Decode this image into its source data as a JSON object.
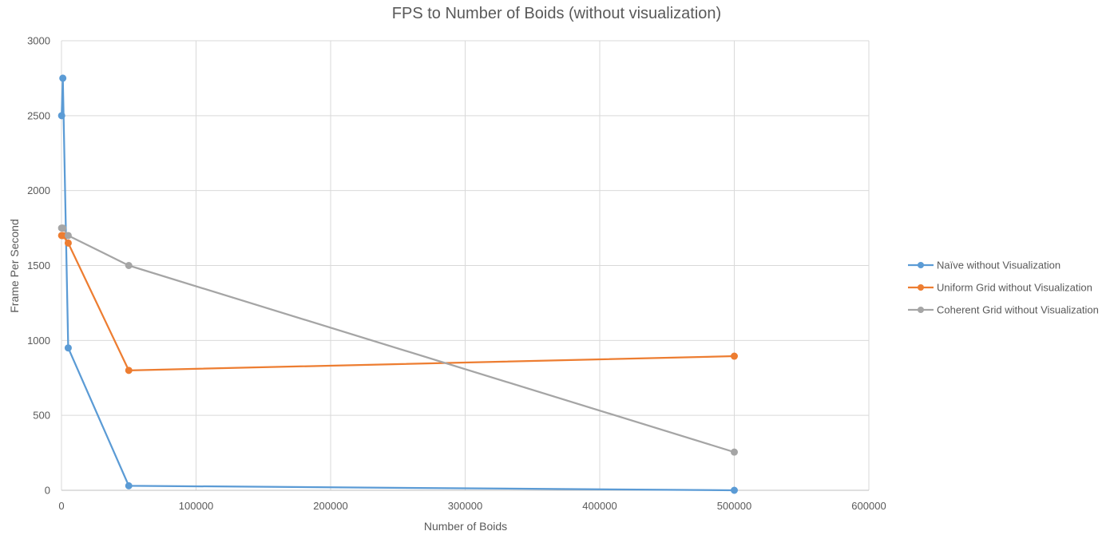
{
  "chart_data": {
    "type": "scatter",
    "title": "FPS to Number of Boids (without visualization)",
    "xlabel": "Number of Boids",
    "ylabel": "Frame Per Second",
    "xlim": [
      0,
      600000
    ],
    "ylim": [
      0,
      3000
    ],
    "xticks": [
      0,
      100000,
      200000,
      300000,
      400000,
      500000,
      600000
    ],
    "yticks": [
      0,
      500,
      1000,
      1500,
      2000,
      2500,
      3000
    ],
    "grid": true,
    "legend_position": "right",
    "series": [
      {
        "name": "Naïve without Visualization",
        "color": "#5B9BD5",
        "points": [
          [
            100,
            2500
          ],
          [
            1000,
            2750
          ],
          [
            5000,
            950
          ],
          [
            50000,
            30
          ],
          [
            500000,
            0
          ]
        ]
      },
      {
        "name": "Uniform Grid without Visualization",
        "color": "#ED7D31",
        "points": [
          [
            100,
            1700
          ],
          [
            1000,
            1700
          ],
          [
            5000,
            1650
          ],
          [
            50000,
            800
          ],
          [
            500000,
            895
          ]
        ]
      },
      {
        "name": "Coherent Grid without Visualization",
        "color": "#A5A5A5",
        "points": [
          [
            100,
            1750
          ],
          [
            1000,
            1750
          ],
          [
            5000,
            1700
          ],
          [
            50000,
            1500
          ],
          [
            500000,
            255
          ]
        ]
      }
    ]
  }
}
